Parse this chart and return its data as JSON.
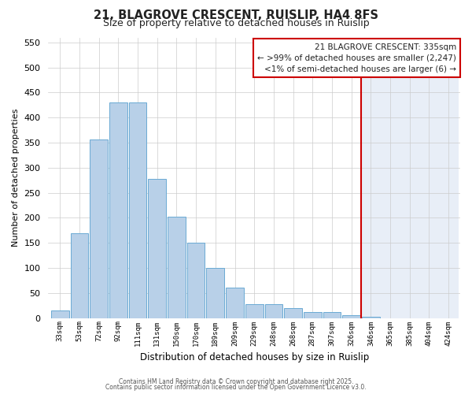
{
  "title": "21, BLAGROVE CRESCENT, RUISLIP, HA4 8FS",
  "subtitle": "Size of property relative to detached houses in Ruislip",
  "xlabel": "Distribution of detached houses by size in Ruislip",
  "ylabel": "Number of detached properties",
  "bar_labels": [
    "33sqm",
    "53sqm",
    "72sqm",
    "92sqm",
    "111sqm",
    "131sqm",
    "150sqm",
    "170sqm",
    "189sqm",
    "209sqm",
    "229sqm",
    "248sqm",
    "268sqm",
    "287sqm",
    "307sqm",
    "326sqm",
    "346sqm",
    "365sqm",
    "385sqm",
    "404sqm",
    "424sqm"
  ],
  "bar_heights": [
    15,
    170,
    357,
    430,
    430,
    278,
    202,
    150,
    100,
    60,
    28,
    28,
    20,
    12,
    12,
    5,
    3,
    0,
    0,
    0,
    0
  ],
  "bar_color": "#b8d0e8",
  "bar_edge_color": "#6aaad4",
  "vline_color": "#cc0000",
  "ylim": [
    0,
    560
  ],
  "yticks": [
    0,
    50,
    100,
    150,
    200,
    250,
    300,
    350,
    400,
    450,
    500,
    550
  ],
  "annotation_title": "21 BLAGROVE CRESCENT: 335sqm",
  "annotation_line1": "← >99% of detached houses are smaller (2,247)",
  "annotation_line2": "<1% of semi-detached houses are larger (6) →",
  "footer1": "Contains HM Land Registry data © Crown copyright and database right 2025.",
  "footer2": "Contains public sector information licensed under the Open Government Licence v3.0.",
  "bg_color": "#ffffff",
  "plot_bg_left": "#ffffff",
  "plot_bg_right": "#e8eef7",
  "grid_color": "#cccccc",
  "vline_x_index": 15.5
}
